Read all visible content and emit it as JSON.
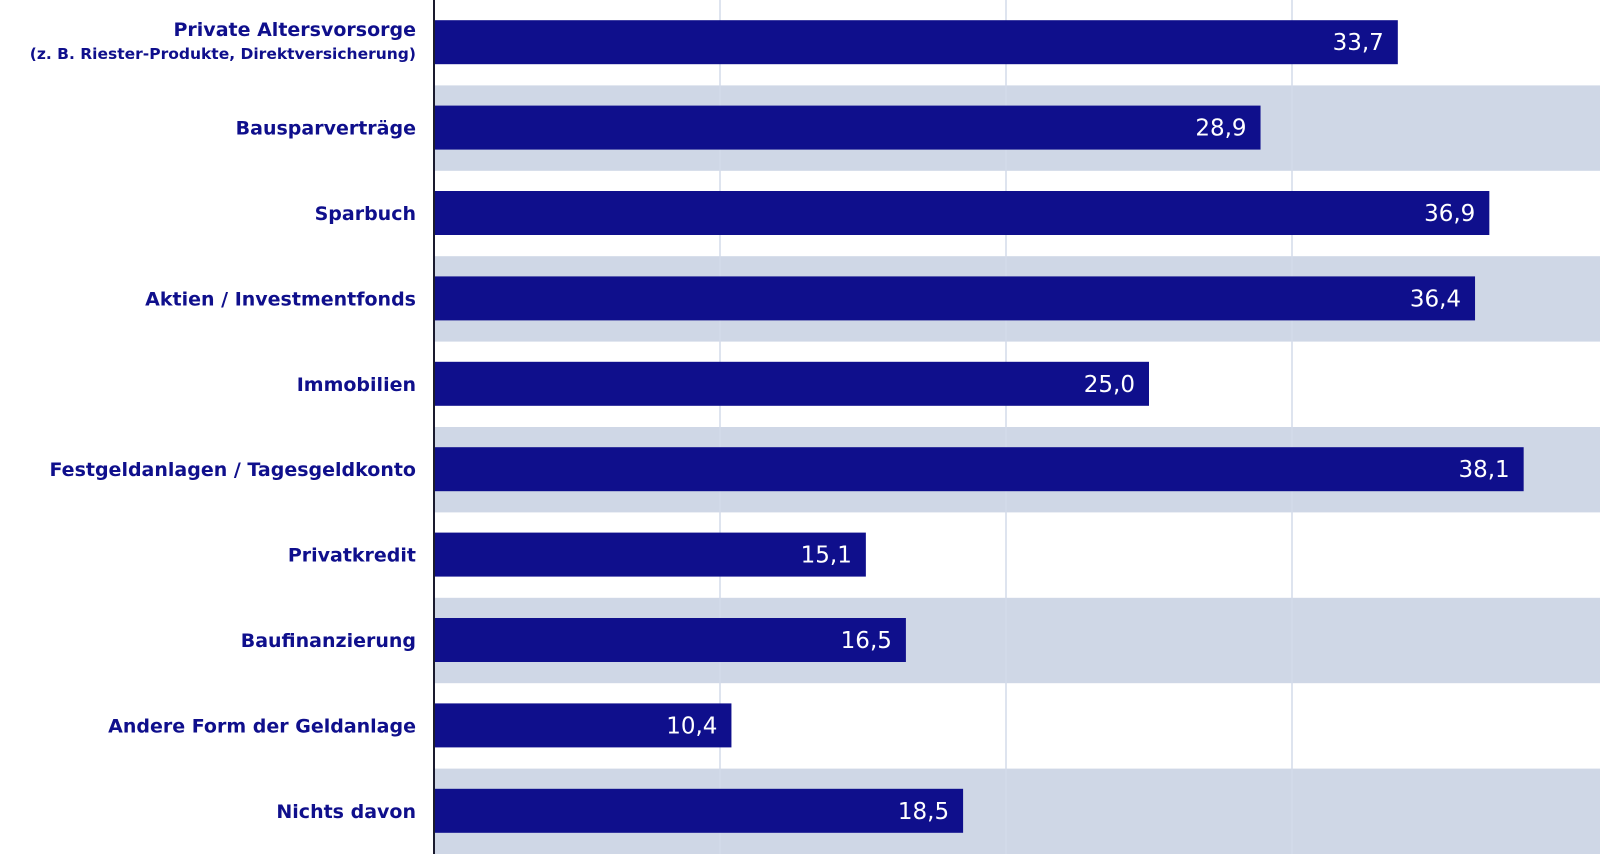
{
  "chart_data": {
    "type": "bar",
    "orientation": "horizontal",
    "categories": [
      [
        "Private Altersvorsorge",
        "(z. B. Riester-Produkte, Direktversicherung)"
      ],
      [
        "Bausparverträge"
      ],
      [
        "Sparbuch"
      ],
      [
        "Aktien / Investmentfonds"
      ],
      [
        "Immobilien"
      ],
      [
        "Festgeldanlagen / Tagesgeldkonto"
      ],
      [
        "Privatkredit"
      ],
      [
        "Baufinanzierung"
      ],
      [
        "Andere Form der Geldanlage"
      ],
      [
        "Nichts davon"
      ]
    ],
    "values": [
      33.7,
      28.9,
      36.9,
      36.4,
      25.0,
      38.1,
      15.1,
      16.5,
      10.4,
      18.5
    ],
    "value_labels": [
      "33,7",
      "28,9",
      "36,9",
      "36,4",
      "25,0",
      "38,1",
      "15,1",
      "16,5",
      "10,4",
      "18,5"
    ],
    "xlim": [
      0,
      40
    ],
    "grid": true,
    "colors": {
      "bar": "#0f0f8c",
      "label": "#0f0f8c",
      "band": "#cfd7e6",
      "grid": "#d4dbea",
      "axis": "#1a1a2e",
      "value_text": "#ffffff"
    }
  }
}
